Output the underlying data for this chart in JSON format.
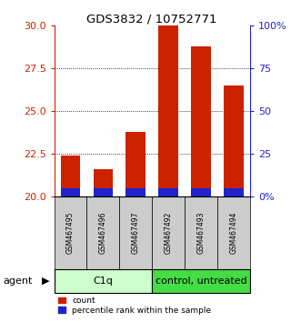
{
  "title": "GDS3832 / 10752771",
  "samples": [
    "GSM467495",
    "GSM467496",
    "GSM467497",
    "GSM467492",
    "GSM467493",
    "GSM467494"
  ],
  "group_labels": [
    "C1q",
    "control, untreated"
  ],
  "count_values": [
    22.4,
    21.6,
    23.8,
    30.0,
    28.8,
    26.5
  ],
  "percentile_values": [
    5.0,
    5.0,
    5.0,
    5.0,
    5.0,
    5.0
  ],
  "bar_bottom": 20.0,
  "ylim_left": [
    20,
    30
  ],
  "ylim_right": [
    0,
    100
  ],
  "yticks_left": [
    20,
    22.5,
    25,
    27.5,
    30
  ],
  "yticks_right": [
    0,
    25,
    50,
    75,
    100
  ],
  "bar_color_count": "#cc2200",
  "bar_color_percentile": "#2222cc",
  "bar_width": 0.6,
  "axis_color_left": "#cc2200",
  "axis_color_right": "#2222cc",
  "legend_count_label": "count",
  "legend_percentile_label": "percentile rank within the sample",
  "agent_label": "agent",
  "sample_bg": "#cccccc",
  "group1_bg": "#ccffcc",
  "group2_bg": "#44dd44"
}
